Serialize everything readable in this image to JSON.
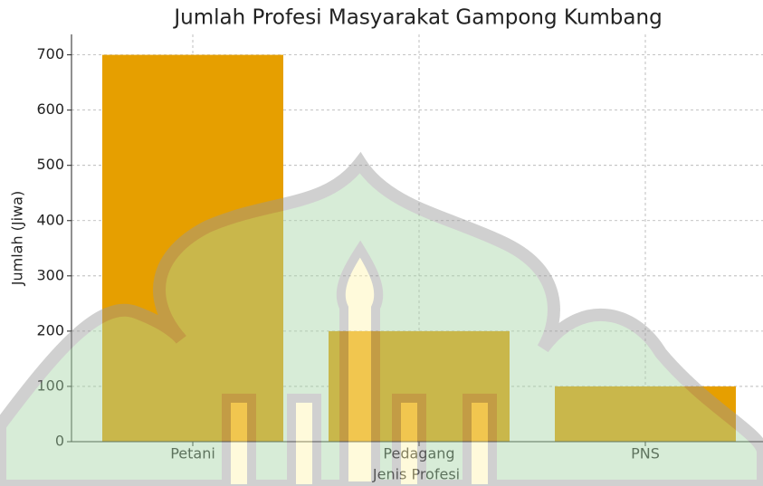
{
  "chart_data": {
    "type": "bar",
    "title": "Jumlah Profesi Masyarakat Gampong Kumbang",
    "x_label": "Jenis Profesi",
    "y_label": "Jumlah (Jiwa)",
    "categories": [
      "Petani",
      "Pedagang",
      "PNS"
    ],
    "values": [
      700,
      200,
      100
    ],
    "color": "#e69f00",
    "ylim": [
      0,
      737
    ],
    "yticks": [
      0,
      100,
      200,
      300,
      400,
      500,
      600,
      700
    ],
    "grid": true
  }
}
